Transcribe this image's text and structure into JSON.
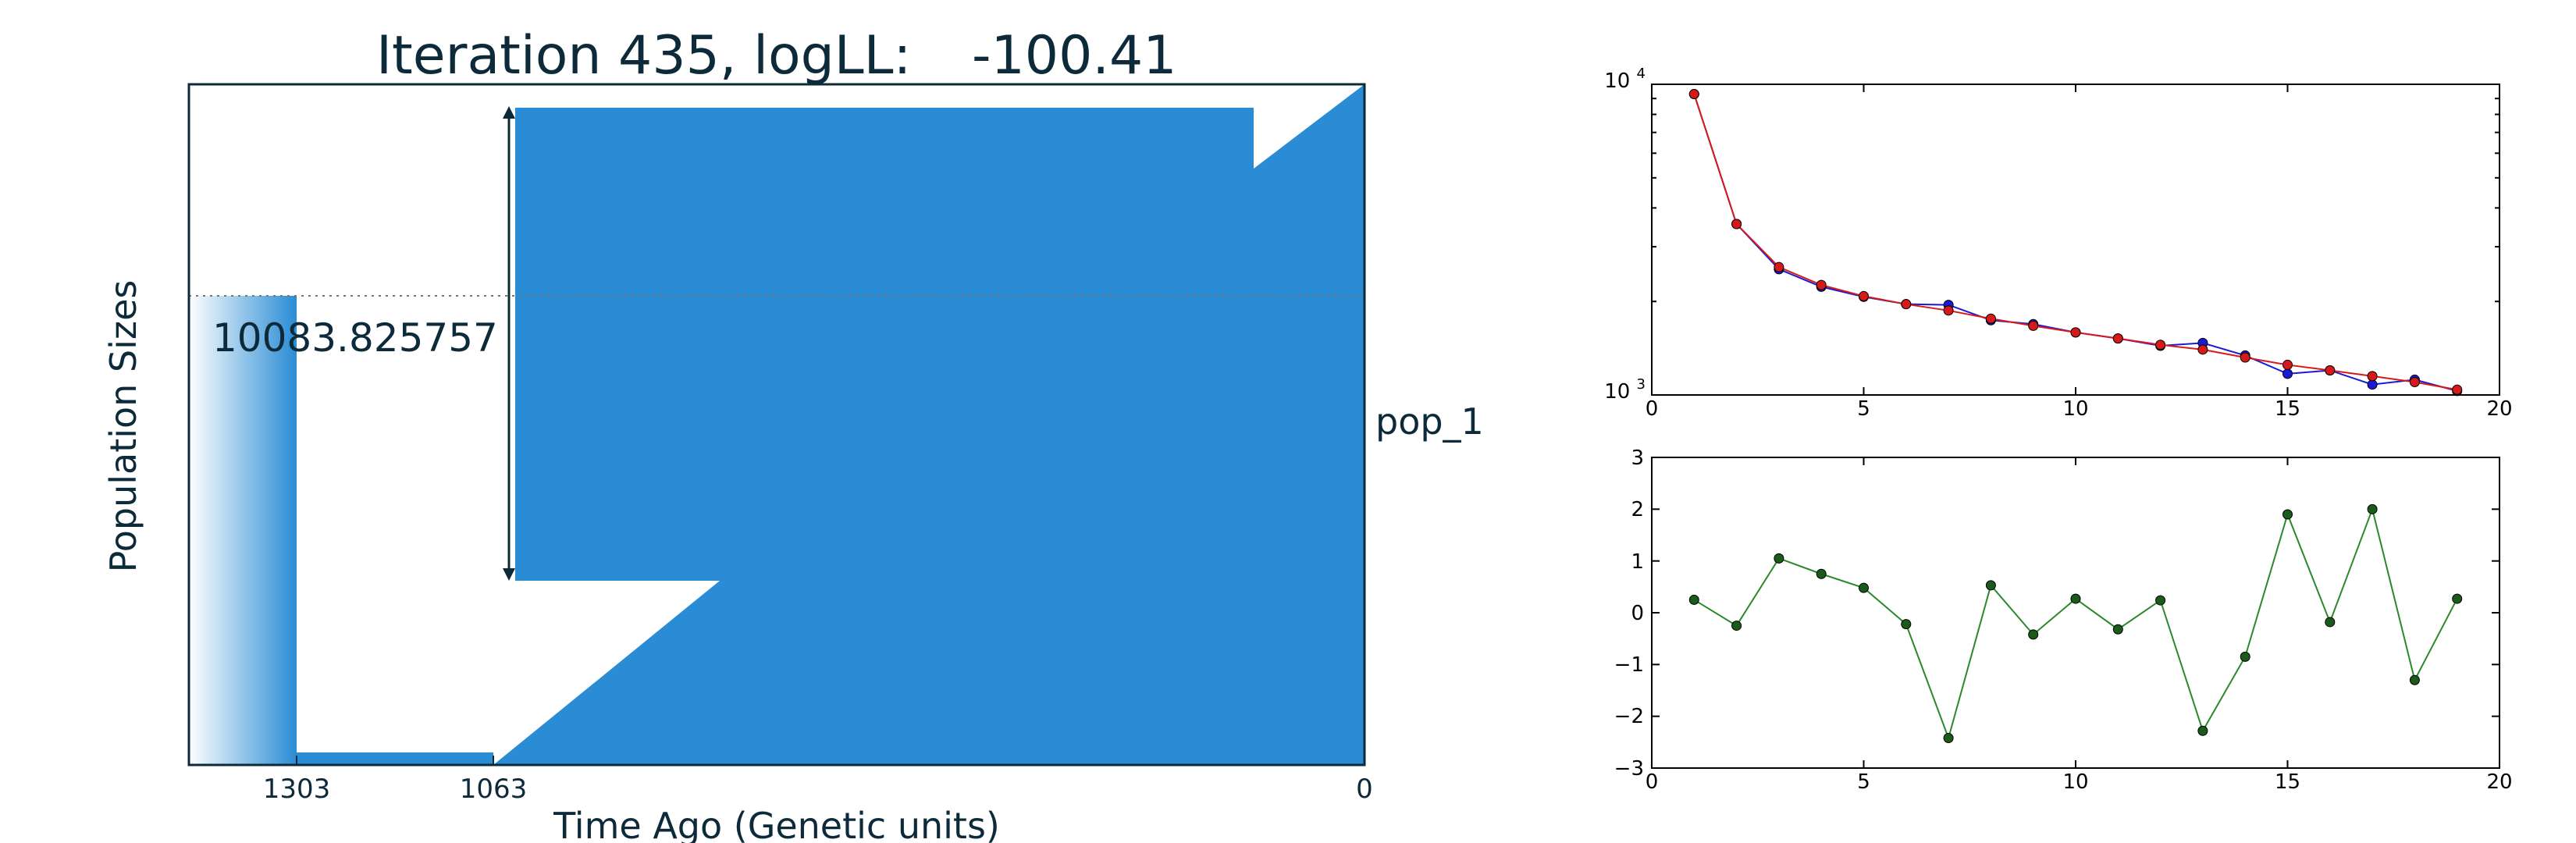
{
  "colors": {
    "demography_fill": "#2a8cd4",
    "text": "#0d2a3a",
    "frame": "#0d2a3a",
    "observed_series": "#1a1ad6",
    "model_series": "#d61a1a",
    "residual_series": "#2a8a2a",
    "marker_green": "#1a5a1a"
  },
  "demography_plot": {
    "title_prefix": "Iteration 435, logLL:",
    "title_value": "-100.41",
    "xlabel": "Time Ago (Genetic units)",
    "ylabel": "Population Sizes",
    "x_ticks": [
      "1303",
      "1063",
      "0"
    ],
    "population_label": "pop_1",
    "size_annotation": "10083.825757"
  },
  "chart_data": [
    {
      "type": "line",
      "panel": "top-right",
      "yscale": "log",
      "xlim": [
        0,
        20
      ],
      "ylim": [
        1000,
        10000
      ],
      "x_ticks": [
        "0",
        "5",
        "10",
        "15",
        "20"
      ],
      "y_ticks": [
        {
          "base": "10",
          "exp": "4"
        },
        {
          "base": "10",
          "exp": "3"
        }
      ],
      "x": [
        1,
        2,
        3,
        4,
        5,
        6,
        7,
        8,
        9,
        10,
        11,
        12,
        13,
        14,
        15,
        16,
        17,
        18,
        19
      ],
      "series": [
        {
          "color_key": "observed_series",
          "values": [
            9300,
            3550,
            2540,
            2230,
            2070,
            1960,
            1950,
            1740,
            1690,
            1590,
            1520,
            1440,
            1470,
            1340,
            1170,
            1200,
            1080,
            1120,
            1030
          ]
        },
        {
          "color_key": "model_series",
          "values": [
            9300,
            3550,
            2580,
            2260,
            2080,
            1960,
            1870,
            1760,
            1670,
            1590,
            1520,
            1450,
            1400,
            1320,
            1250,
            1200,
            1150,
            1100,
            1040
          ]
        }
      ]
    },
    {
      "type": "line",
      "panel": "bottom-right",
      "xlim": [
        0,
        20
      ],
      "ylim": [
        -3,
        3
      ],
      "x_ticks": [
        "0",
        "5",
        "10",
        "15",
        "20"
      ],
      "y_ticks": [
        "3",
        "2",
        "1",
        "0",
        "−1",
        "−2",
        "−3"
      ],
      "x": [
        1,
        2,
        3,
        4,
        5,
        6,
        7,
        8,
        9,
        10,
        11,
        12,
        13,
        14,
        15,
        16,
        17,
        18,
        19
      ],
      "series": [
        {
          "color_key": "residual_series",
          "values": [
            0.25,
            -0.25,
            1.05,
            0.75,
            0.48,
            -0.22,
            -2.42,
            0.53,
            -0.42,
            0.27,
            -0.32,
            0.24,
            -2.28,
            -0.85,
            1.9,
            -0.18,
            2.0,
            -1.3,
            0.27
          ]
        }
      ]
    }
  ]
}
